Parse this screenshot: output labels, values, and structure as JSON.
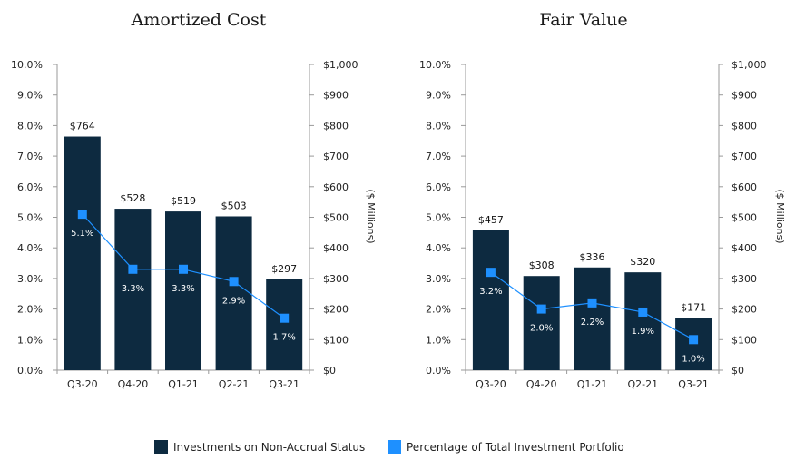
{
  "colors": {
    "bar": "#0d2a40",
    "line": "#1e90ff",
    "axis": "#9a9a9a"
  },
  "legend": {
    "bar_label": "Investments on Non-Accrual Status",
    "line_label": "Percentage of Total Investment Portfolio"
  },
  "chart_data": [
    {
      "type": "bar",
      "title": "Amortized Cost",
      "categories": [
        "Q3-20",
        "Q4-20",
        "Q1-21",
        "Q2-21",
        "Q3-21"
      ],
      "series": [
        {
          "name": "Investments on Non-Accrual Status",
          "axis": "right",
          "values": [
            764,
            528,
            519,
            503,
            297
          ],
          "labels": [
            "$764",
            "$528",
            "$519",
            "$503",
            "$297"
          ]
        },
        {
          "name": "Percentage of Total Investment Portfolio",
          "axis": "left",
          "type": "line",
          "values": [
            5.1,
            3.3,
            3.3,
            2.9,
            1.7
          ],
          "labels": [
            "5.1%",
            "3.3%",
            "3.3%",
            "2.9%",
            "1.7%"
          ]
        }
      ],
      "y_left": {
        "lim": [
          0,
          10
        ],
        "ticks": [
          "0.0%",
          "1.0%",
          "2.0%",
          "3.0%",
          "4.0%",
          "5.0%",
          "6.0%",
          "7.0%",
          "8.0%",
          "9.0%",
          "10.0%"
        ]
      },
      "y_right": {
        "lim": [
          0,
          1000
        ],
        "label": "($ Millions)",
        "ticks": [
          "$0",
          "$100",
          "$200",
          "$300",
          "$400",
          "$500",
          "$600",
          "$700",
          "$800",
          "$900",
          "$1,000"
        ]
      },
      "grid": false
    },
    {
      "type": "bar",
      "title": "Fair Value",
      "categories": [
        "Q3-20",
        "Q4-20",
        "Q1-21",
        "Q2-21",
        "Q3-21"
      ],
      "series": [
        {
          "name": "Investments on Non-Accrual Status",
          "axis": "right",
          "values": [
            457,
            308,
            336,
            320,
            171
          ],
          "labels": [
            "$457",
            "$308",
            "$336",
            "$320",
            "$171"
          ]
        },
        {
          "name": "Percentage of Total Investment Portfolio",
          "axis": "left",
          "type": "line",
          "values": [
            3.2,
            2.0,
            2.2,
            1.9,
            1.0
          ],
          "labels": [
            "3.2%",
            "2.0%",
            "2.2%",
            "1.9%",
            "1.0%"
          ]
        }
      ],
      "y_left": {
        "lim": [
          0,
          10
        ],
        "ticks": [
          "0.0%",
          "1.0%",
          "2.0%",
          "3.0%",
          "4.0%",
          "5.0%",
          "6.0%",
          "7.0%",
          "8.0%",
          "9.0%",
          "10.0%"
        ]
      },
      "y_right": {
        "lim": [
          0,
          1000
        ],
        "label": "($ Millions)",
        "ticks": [
          "$0",
          "$100",
          "$200",
          "$300",
          "$400",
          "$500",
          "$600",
          "$700",
          "$800",
          "$900",
          "$1,000"
        ]
      },
      "grid": false
    }
  ]
}
